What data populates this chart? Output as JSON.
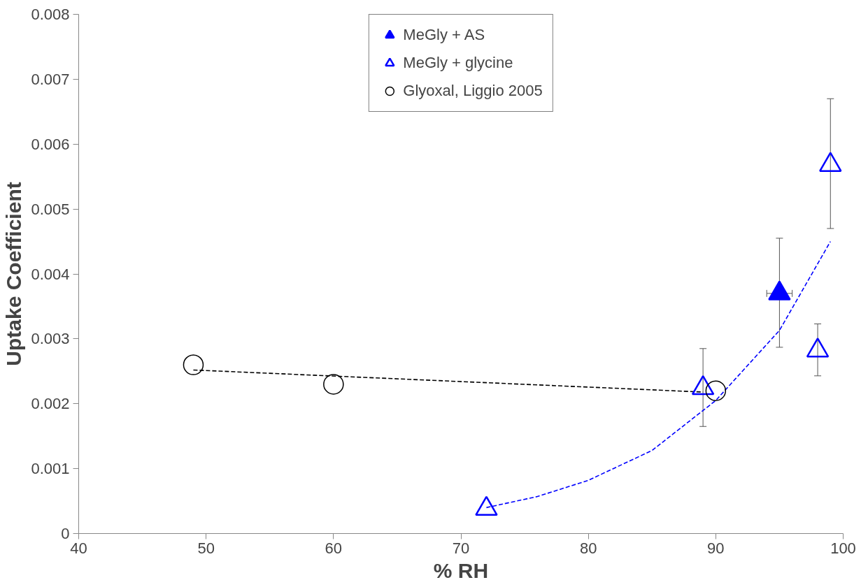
{
  "chart_data": {
    "type": "scatter",
    "xlabel": "% RH",
    "ylabel": "Uptake Coefficient",
    "xlim": [
      40,
      100
    ],
    "ylim": [
      0,
      0.008
    ],
    "xticks": [
      40,
      50,
      60,
      70,
      80,
      90,
      100
    ],
    "yticks": [
      0,
      0.001,
      0.002,
      0.003,
      0.004,
      0.005,
      0.006,
      0.007,
      0.008
    ],
    "grid": false,
    "legend": "top",
    "series": [
      {
        "name": "MeGly + AS",
        "marker": "triangle",
        "color": "#0000ff",
        "x": [
          95
        ],
        "values": [
          0.0037
        ],
        "errors": [
          [
            0.00287,
            0.00455
          ]
        ],
        "xerrors": [
          [
            94,
            96
          ]
        ]
      },
      {
        "name": "MeGly + glycine",
        "marker": "triangle",
        "color": "#0000ff",
        "x": [
          72,
          89,
          98,
          99
        ],
        "values": [
          0.00038,
          0.00224,
          0.00282,
          0.00568
        ],
        "errors": [
          null,
          [
            0.00165,
            0.00285
          ],
          [
            0.00243,
            0.00323
          ],
          [
            0.0047,
            0.0067
          ]
        ]
      },
      {
        "name": "Glyoxal, Liggio 2005",
        "marker": "circle",
        "color": "#000000",
        "x": [
          49,
          60,
          90
        ],
        "values": [
          0.0026,
          0.0023,
          0.0022
        ]
      },
      {
        "type": "line",
        "line_style": "dashed",
        "color": "#000000",
        "x": [
          49,
          89
        ],
        "values": [
          0.00252,
          0.00218
        ]
      },
      {
        "type": "line",
        "line_style": "dashed",
        "color": "#0000ff",
        "x": [
          72,
          76,
          80,
          85,
          90,
          95,
          99
        ],
        "values": [
          0.0004,
          0.00057,
          0.00082,
          0.00128,
          0.00205,
          0.00313,
          0.0045
        ]
      }
    ]
  }
}
